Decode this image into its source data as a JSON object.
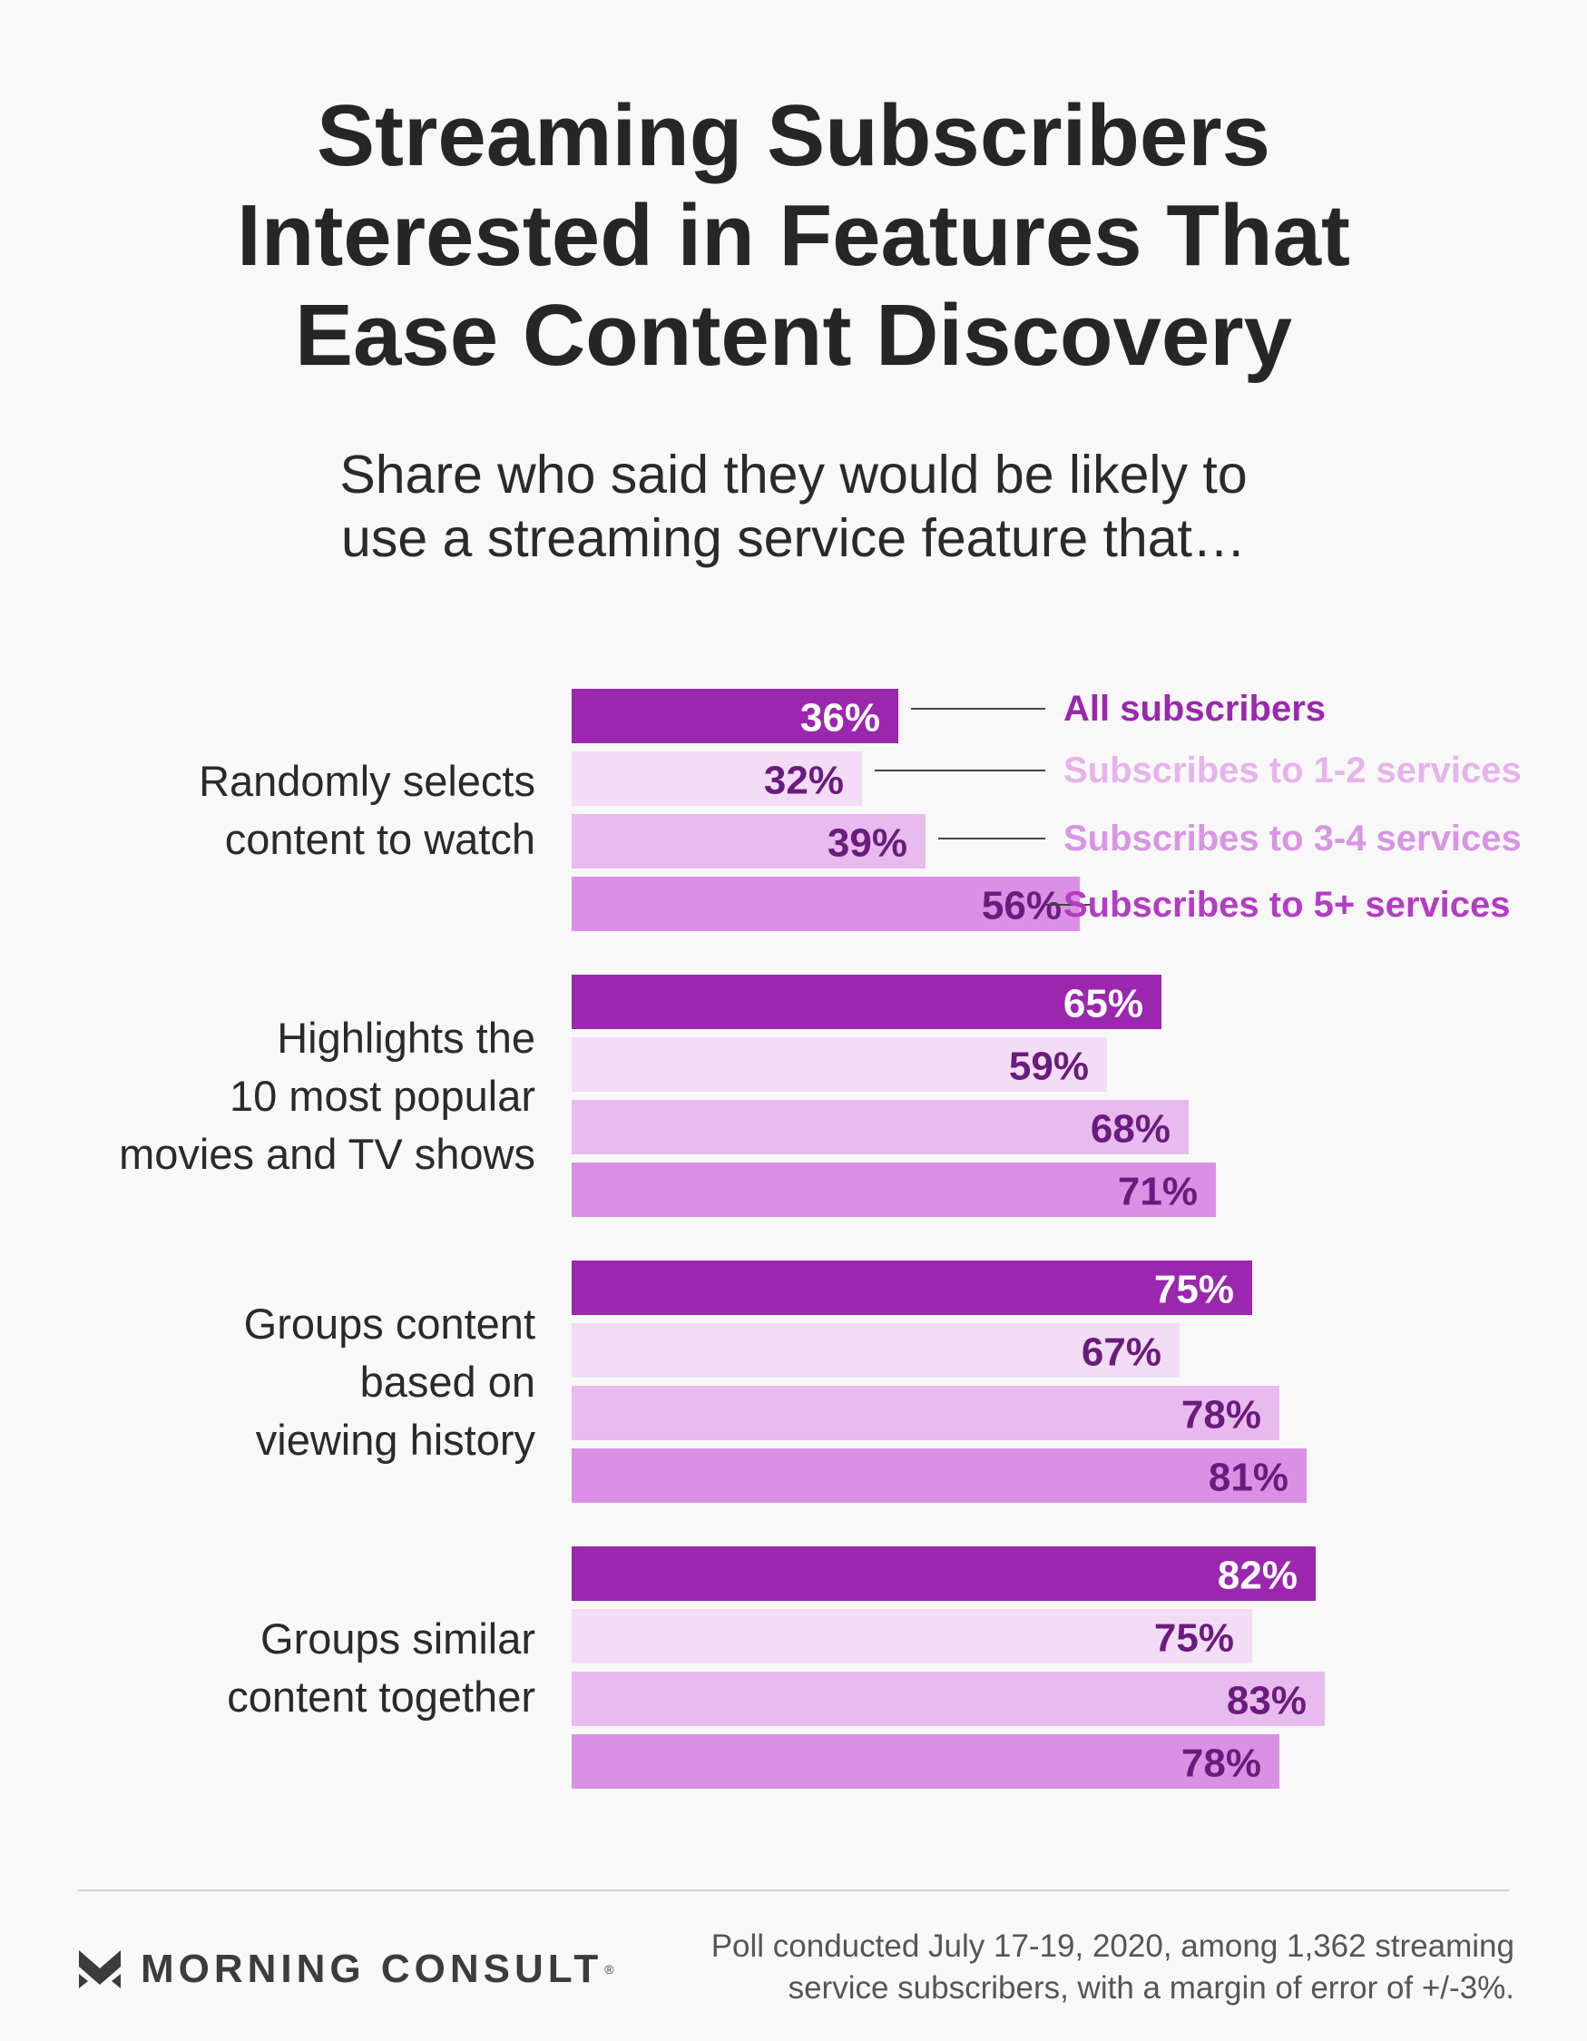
{
  "title": {
    "line1": "Streaming Subscribers",
    "line2": "Interested in Features That",
    "line3": "Ease Content Discovery"
  },
  "subtitle": {
    "line1": "Share who said they would be likely to",
    "line2": "use a streaming service feature that…"
  },
  "chart_data": {
    "type": "bar",
    "orientation": "horizontal",
    "title": "Streaming Subscribers Interested in Features That Ease Content Discovery",
    "subtitle": "Share who said they would be likely to use a streaming service feature that…",
    "unit": "%",
    "xlim": [
      0,
      100
    ],
    "categories": [
      {
        "key": "random",
        "label_lines": [
          "Randomly selects",
          "content to watch"
        ]
      },
      {
        "key": "top10",
        "label_lines": [
          "Highlights the",
          "10 most popular",
          "movies and TV shows"
        ]
      },
      {
        "key": "history",
        "label_lines": [
          "Groups content",
          "based on",
          "viewing history"
        ]
      },
      {
        "key": "similar",
        "label_lines": [
          "Groups similar",
          "content together"
        ]
      }
    ],
    "series": [
      {
        "name": "All subscribers",
        "color": "#9b27af",
        "value_color": "#ffffff",
        "legend_color": "#9b27af",
        "values": [
          36,
          65,
          75,
          82
        ]
      },
      {
        "name": "Subscribes to 1-2 services",
        "color": "#f3dcf5",
        "value_color": "#6a1b7d",
        "legend_color": "#e6b3ec",
        "values": [
          32,
          59,
          67,
          75
        ]
      },
      {
        "name": "Subscribes to 3-4 services",
        "color": "#e7bbed",
        "value_color": "#6a1b7d",
        "legend_color": "#d995e3",
        "values": [
          39,
          68,
          78,
          83
        ]
      },
      {
        "name": "Subscribes to 5+ services",
        "color": "#da90e4",
        "value_color": "#6a1b7d",
        "legend_color": "#b43cc4",
        "values": [
          56,
          71,
          81,
          78
        ]
      }
    ],
    "value_format": "{v}%"
  },
  "footer": {
    "brand": "MORNING CONSULT",
    "brand_mark": "®",
    "note_line1": "Poll conducted July 17-19, 2020, among 1,362 streaming",
    "note_line2": "service subscribers, with a margin of error of +/-3%."
  }
}
